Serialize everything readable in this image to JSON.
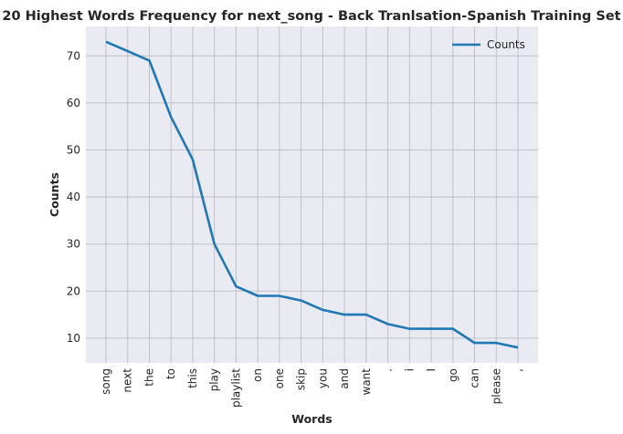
{
  "chart_data": {
    "type": "line",
    "title": "20 Highest Words Frequency for next_song - Back Tranlsation-Spanish Training Set",
    "xlabel": "Words",
    "ylabel": "Counts",
    "categories": [
      "song",
      "next",
      "the",
      "to",
      "this",
      "play",
      "playlist",
      "on",
      "one",
      "skip",
      "you",
      "and",
      "want",
      ".",
      "i",
      "I",
      "go",
      "can",
      "please",
      ","
    ],
    "series": [
      {
        "name": "Counts",
        "values": [
          73,
          71,
          69,
          57,
          48,
          30,
          21,
          19,
          19,
          18,
          16,
          15,
          15,
          13,
          12,
          12,
          12,
          9,
          9,
          8
        ],
        "color": "#1f77b4"
      }
    ],
    "yticks": [
      10,
      20,
      30,
      40,
      50,
      60,
      70
    ],
    "ylim": [
      4.75,
      76.25
    ],
    "grid": true,
    "legend_position": "top-right",
    "background": "#eaeaf2",
    "grid_color": "#c0c0c8"
  }
}
